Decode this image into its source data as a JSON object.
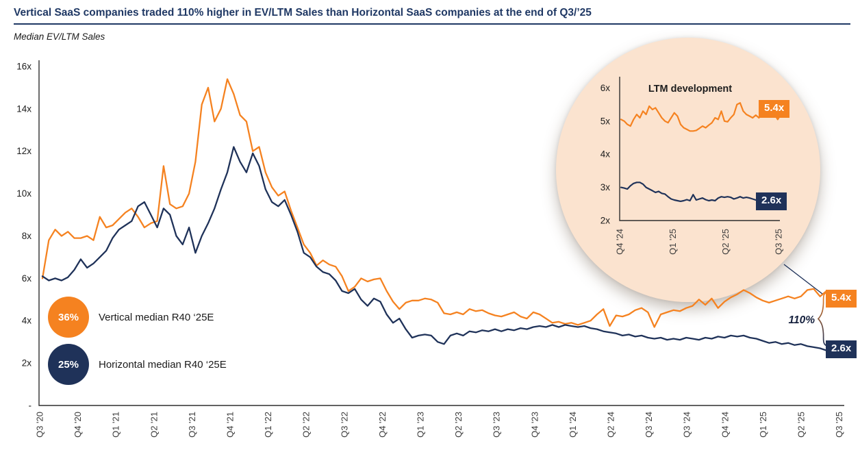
{
  "header": {
    "title": "Vertical SaaS companies traded 110% higher in EV/LTM Sales than Horizontal SaaS companies at the end of Q3/’25",
    "subtitle": "Median EV/LTM Sales"
  },
  "legend": {
    "vertical": {
      "pct": "36%",
      "label": "Vertical median R40 ‘25E"
    },
    "horizontal": {
      "pct": "25%",
      "label": "Horizontal median R40 ‘25E"
    }
  },
  "colors": {
    "vertical": "#F58220",
    "horizontal": "#1F3259",
    "title_navy": "#1F3864",
    "inset_bg": "#FBE3CF",
    "badge_text": "#FFFFFF"
  },
  "chart_data": {
    "type": "line",
    "title": "Vertical SaaS companies traded 110% higher in EV/LTM Sales than Horizontal SaaS companies at the end of Q3/'25",
    "ylabel": "Median EV/LTM Sales",
    "grid": false,
    "main": {
      "x_ticks": [
        "Q3 '20",
        "Q4 '20",
        "Q1 '21",
        "Q2 '21",
        "Q3 '21",
        "Q4 '21",
        "Q1 '22",
        "Q2 '22",
        "Q3 '22",
        "Q4 '22",
        "Q1 '23",
        "Q2 '23",
        "Q3 '23",
        "Q4 '23",
        "Q1 '24",
        "Q2 '24",
        "Q3 '24",
        "Q3 '24",
        "Q4 '24",
        "Q1 '25",
        "Q2 '25",
        "Q3 '25"
      ],
      "y_tick_labels": [
        "16x",
        "14x",
        "12x",
        "10x",
        "8x",
        "6x",
        "4x",
        "2x",
        "-"
      ],
      "y_tick_values": [
        16,
        14,
        12,
        10,
        8,
        6,
        4,
        2,
        0
      ],
      "ylim": [
        0,
        16
      ],
      "spread_annotation": "110%",
      "series": [
        {
          "name": "Vertical median EV/LTM Sales",
          "color": "#F58220",
          "end_label": "5.4x",
          "values": [
            6.0,
            7.8,
            8.3,
            8.0,
            8.2,
            7.9,
            7.9,
            8.0,
            7.8,
            8.9,
            8.4,
            8.5,
            8.8,
            9.1,
            9.3,
            8.9,
            8.4,
            8.6,
            8.7,
            11.3,
            9.5,
            9.3,
            9.4,
            10.0,
            11.5,
            14.2,
            15.0,
            13.4,
            14.0,
            15.4,
            14.7,
            13.7,
            13.4,
            12.0,
            12.2,
            11.0,
            10.3,
            9.9,
            10.1,
            9.2,
            8.4,
            7.6,
            7.2,
            6.6,
            6.85,
            6.65,
            6.55,
            6.1,
            5.4,
            5.6,
            6.0,
            5.85,
            5.95,
            6.0,
            5.4,
            4.9,
            4.55,
            4.85,
            4.95,
            4.95,
            5.05,
            5.0,
            4.85,
            4.35,
            4.3,
            4.4,
            4.3,
            4.55,
            4.45,
            4.5,
            4.35,
            4.25,
            4.2,
            4.3,
            4.4,
            4.2,
            4.1,
            4.4,
            4.3,
            4.1,
            3.9,
            3.95,
            3.85,
            3.9,
            3.8,
            3.9,
            4.0,
            4.3,
            4.55,
            3.75,
            4.25,
            4.2,
            4.3,
            4.5,
            4.6,
            4.4,
            3.7,
            4.3,
            4.4,
            4.5,
            4.45,
            4.6,
            4.7,
            5.0,
            4.75,
            5.05,
            4.6,
            4.9,
            5.1,
            5.25,
            5.45,
            5.3,
            5.1,
            4.95,
            4.85,
            4.95,
            5.05,
            5.15,
            5.05,
            5.15,
            5.45,
            5.5,
            5.15,
            5.4
          ]
        },
        {
          "name": "Horizontal median EV/LTM Sales",
          "color": "#1F3259",
          "end_label": "2.6x",
          "values": [
            6.1,
            5.9,
            6.0,
            5.9,
            6.05,
            6.4,
            6.9,
            6.5,
            6.7,
            7.0,
            7.3,
            7.9,
            8.3,
            8.5,
            8.7,
            9.4,
            9.6,
            9.0,
            8.4,
            9.3,
            9.0,
            8.0,
            7.6,
            8.4,
            7.2,
            8.0,
            8.6,
            9.3,
            10.2,
            11.0,
            12.2,
            11.5,
            11.0,
            11.9,
            11.3,
            10.2,
            9.6,
            9.4,
            9.7,
            9.0,
            8.2,
            7.2,
            7.0,
            6.55,
            6.3,
            6.2,
            5.9,
            5.4,
            5.3,
            5.5,
            5.0,
            4.7,
            5.05,
            4.9,
            4.3,
            3.9,
            4.1,
            3.6,
            3.2,
            3.3,
            3.35,
            3.3,
            3.0,
            2.9,
            3.3,
            3.4,
            3.3,
            3.5,
            3.45,
            3.55,
            3.5,
            3.6,
            3.5,
            3.6,
            3.55,
            3.65,
            3.6,
            3.7,
            3.75,
            3.7,
            3.8,
            3.7,
            3.8,
            3.75,
            3.7,
            3.75,
            3.65,
            3.6,
            3.5,
            3.45,
            3.4,
            3.3,
            3.35,
            3.25,
            3.3,
            3.2,
            3.15,
            3.2,
            3.1,
            3.15,
            3.1,
            3.2,
            3.15,
            3.1,
            3.2,
            3.15,
            3.25,
            3.2,
            3.3,
            3.25,
            3.3,
            3.2,
            3.15,
            3.05,
            2.95,
            3.0,
            2.9,
            2.95,
            2.85,
            2.9,
            2.8,
            2.75,
            2.7,
            2.6
          ]
        }
      ]
    },
    "inset": {
      "title": "LTM development",
      "x_ticks": [
        "Q4 '24",
        "Q1 '25",
        "Q2 '25",
        "Q3 '25"
      ],
      "y_tick_labels": [
        "6x",
        "5x",
        "4x",
        "3x",
        "2x"
      ],
      "y_tick_values": [
        6,
        5,
        4,
        3,
        2
      ],
      "ylim": [
        2,
        6
      ],
      "series": [
        {
          "name": "Vertical median EV/LTM Sales (LTM)",
          "color": "#F58220",
          "end_label": "5.4x",
          "values": [
            5.05,
            5.0,
            4.9,
            4.85,
            5.05,
            5.2,
            5.1,
            5.3,
            5.2,
            5.45,
            5.35,
            5.4,
            5.25,
            5.1,
            5.0,
            4.95,
            5.1,
            5.25,
            5.15,
            4.9,
            4.8,
            4.75,
            4.7,
            4.7,
            4.72,
            4.78,
            4.85,
            4.8,
            4.88,
            4.95,
            5.1,
            5.05,
            5.3,
            5.0,
            4.98,
            5.1,
            5.2,
            5.5,
            5.55,
            5.3,
            5.2,
            5.15,
            5.1,
            5.18,
            5.1,
            5.22,
            5.3,
            5.28,
            5.45,
            5.2,
            5.05,
            5.2,
            5.4
          ]
        },
        {
          "name": "Horizontal median EV/LTM Sales (LTM)",
          "color": "#1F3259",
          "end_label": "2.6x",
          "values": [
            3.0,
            2.98,
            2.95,
            3.05,
            3.12,
            3.15,
            3.15,
            3.1,
            3.0,
            2.95,
            2.9,
            2.85,
            2.88,
            2.82,
            2.8,
            2.72,
            2.65,
            2.62,
            2.6,
            2.58,
            2.6,
            2.63,
            2.6,
            2.78,
            2.62,
            2.65,
            2.68,
            2.63,
            2.6,
            2.62,
            2.6,
            2.68,
            2.72,
            2.7,
            2.72,
            2.7,
            2.65,
            2.68,
            2.72,
            2.68,
            2.7,
            2.68,
            2.65,
            2.62,
            2.66,
            2.7,
            2.68,
            2.72,
            2.7,
            2.68,
            2.65,
            2.6,
            2.6
          ]
        }
      ]
    }
  }
}
